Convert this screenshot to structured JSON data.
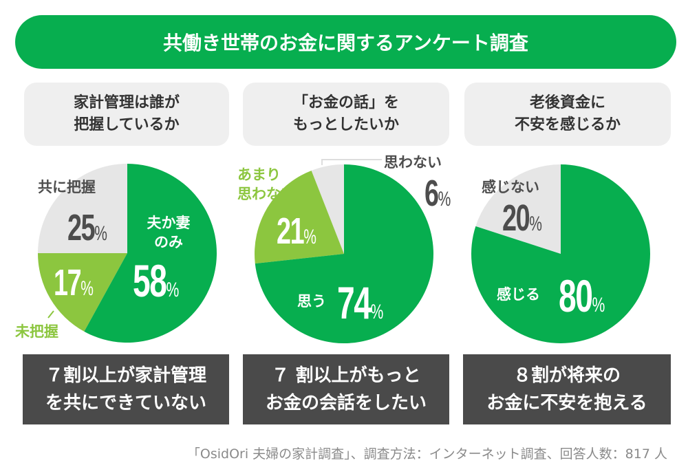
{
  "title": "共働き世帯のお金に関するアンケート調査",
  "colors": {
    "green": "#07ae4f",
    "light_green": "#8cc63f",
    "gray": "#e6e6e6",
    "dark": "#4a4a4a"
  },
  "questions": [
    "家計管理は誰が\n把握しているか",
    "「お金の話」を\nもっとしたいか",
    "老後資金に\n不安を感じるか"
  ],
  "conclusions": [
    "７割以上が家計管理\nを共にできていない",
    "７ 割以上がもっと\nお金の会話をしたい",
    "８割が将来の\nお金に不安を抱える"
  ],
  "percent_sign": "%",
  "chart_data": [
    {
      "type": "pie",
      "categories": [
        "夫か妻のみ",
        "未把握",
        "共に把握"
      ],
      "labels": [
        "夫か妻\nのみ",
        "未把握",
        "共に把握"
      ],
      "values": [
        58,
        17,
        25
      ],
      "colors": [
        "#07ae4f",
        "#8cc63f",
        "#e6e6e6"
      ]
    },
    {
      "type": "pie",
      "categories": [
        "思う",
        "あまり思わない",
        "思わない"
      ],
      "labels": [
        "思う",
        "あまり\n思わない",
        "思わない"
      ],
      "values": [
        74,
        21,
        6
      ],
      "colors": [
        "#07ae4f",
        "#8cc63f",
        "#e6e6e6"
      ]
    },
    {
      "type": "pie",
      "categories": [
        "感じる",
        "感じない"
      ],
      "labels": [
        "感じる",
        "感じない"
      ],
      "values": [
        80,
        20
      ],
      "colors": [
        "#07ae4f",
        "#e6e6e6"
      ]
    }
  ],
  "footer": "「OsidOri 夫婦の家計調査」、調査方法：インターネット調査、回答人数：817 人"
}
